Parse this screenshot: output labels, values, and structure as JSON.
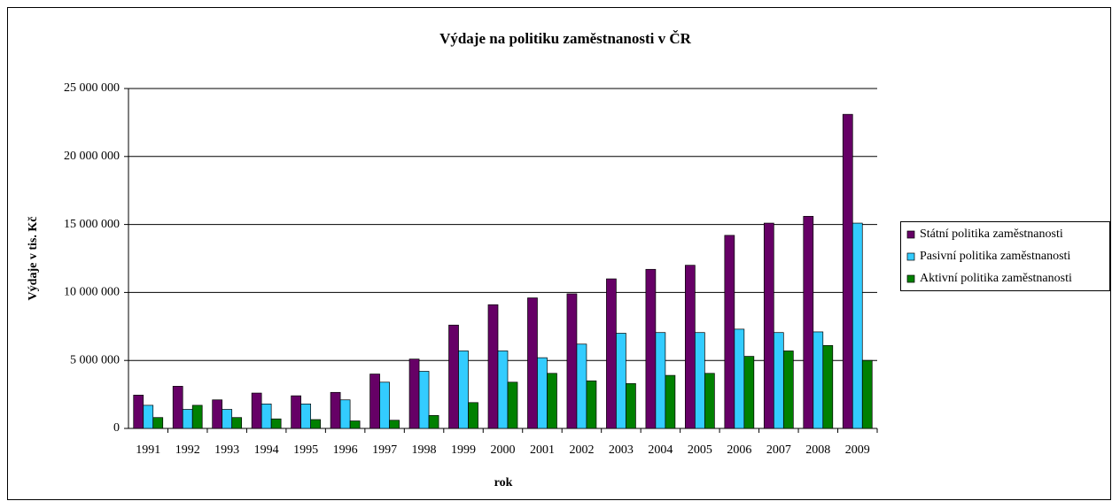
{
  "chart_data": {
    "type": "bar",
    "title": "Výdaje na politiku zaměstnanosti v ČR",
    "xlabel": "rok",
    "ylabel": "Výdaje v tis. Kč",
    "categories": [
      "1991",
      "1992",
      "1993",
      "1994",
      "1995",
      "1996",
      "1997",
      "1998",
      "1999",
      "2000",
      "2001",
      "2002",
      "2003",
      "2004",
      "2005",
      "2006",
      "2007",
      "2008",
      "2009"
    ],
    "series": [
      {
        "name": "Státní politika zaměstnanosti",
        "color": "#660066",
        "values": [
          2450000,
          3100000,
          2100000,
          2600000,
          2400000,
          2650000,
          4000000,
          5100000,
          7600000,
          9100000,
          9600000,
          9900000,
          11000000,
          11700000,
          12000000,
          14200000,
          15100000,
          15600000,
          23100000
        ]
      },
      {
        "name": "Pasivní politika zaměstnanosti",
        "color": "#33ccff",
        "values": [
          1700000,
          1400000,
          1400000,
          1800000,
          1800000,
          2100000,
          3400000,
          4200000,
          5700000,
          5700000,
          5200000,
          6200000,
          7000000,
          7050000,
          7050000,
          7300000,
          7050000,
          7100000,
          15100000
        ]
      },
      {
        "name": "Aktivní politika zaměstnanosti",
        "color": "#008000",
        "values": [
          800000,
          1700000,
          800000,
          700000,
          650000,
          550000,
          600000,
          950000,
          1900000,
          3400000,
          4050000,
          3500000,
          3300000,
          3900000,
          4050000,
          5300000,
          5700000,
          6100000,
          5000000
        ]
      }
    ],
    "ylim": [
      0,
      25000000
    ],
    "yticks": [
      0,
      {
        "value": 5000000,
        "label": "5 000 000"
      },
      {
        "value": 10000000,
        "label": "10 000 000"
      },
      {
        "value": 15000000,
        "label": "15 000 000"
      },
      {
        "value": 20000000,
        "label": "20 000 000"
      },
      {
        "value": 25000000,
        "label": "25 000 000"
      }
    ],
    "grid": true,
    "legend": "right"
  }
}
